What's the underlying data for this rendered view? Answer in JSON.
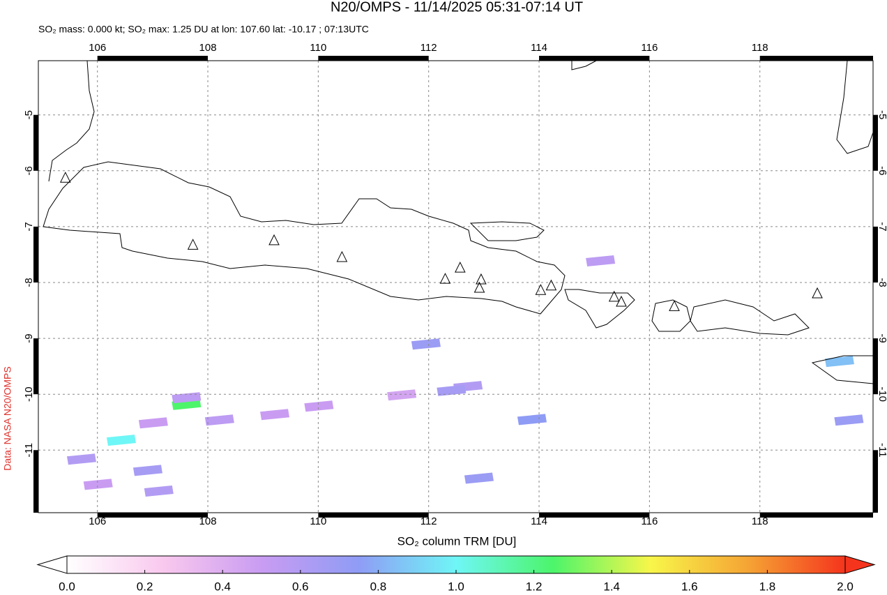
{
  "chart_data": {
    "type": "map",
    "title": "N20/OMPS - 11/14/2025 05:31-07:14 UT",
    "subtitle": "SO₂ mass: 0.000 kt; SO₂ max: 1.25 DU at lon: 107.60 lat: -10.17 ; 07:13UTC",
    "credit": "Data: NASA N20/OMPS",
    "xlim": [
      104.93,
      120.05
    ],
    "ylim": [
      -12.12,
      -4.03
    ],
    "xticks": [
      106,
      108,
      110,
      112,
      114,
      116,
      118
    ],
    "yticks": [
      -5,
      -6,
      -7,
      -8,
      -9,
      -10,
      -11
    ],
    "grid": true,
    "volcanoes": {
      "x": [
        105.42,
        107.73,
        109.2,
        110.43,
        112.3,
        112.57,
        112.95,
        112.92,
        114.03,
        114.22,
        115.36,
        115.49,
        116.45,
        119.04
      ],
      "y": [
        -6.13,
        -7.33,
        -7.25,
        -7.55,
        -7.94,
        -7.74,
        -7.95,
        -8.1,
        -8.14,
        -8.06,
        -8.26,
        -8.35,
        -8.43,
        -8.2
      ]
    },
    "pixels": {
      "x": [
        107.6,
        106.42,
        119.43,
        113.86,
        111.94,
        112.9,
        106.9,
        107.1,
        107.6,
        112.7,
        112.4,
        109.2,
        110.0,
        111.5,
        108.2,
        106.0,
        105.7,
        107.0,
        115.1,
        119.6
      ],
      "y": [
        -10.17,
        -10.81,
        -9.4,
        -10.44,
        -9.09,
        -11.49,
        -11.35,
        -11.72,
        -10.05,
        -9.85,
        -9.92,
        -10.35,
        -10.2,
        -10.0,
        -10.45,
        -11.6,
        -11.15,
        -10.5,
        -7.6,
        -10.45
      ],
      "values": [
        1.25,
        1.0,
        0.85,
        0.75,
        0.7,
        0.7,
        0.65,
        0.6,
        0.55,
        0.6,
        0.65,
        0.5,
        0.5,
        0.45,
        0.55,
        0.5,
        0.6,
        0.5,
        0.55,
        0.7
      ]
    },
    "colorbar": {
      "label": "SO₂ column TRM [DU]",
      "lim": [
        0,
        2
      ],
      "colors": [
        "#ffffff",
        "#f9c8ee",
        "#c99cf2",
        "#8f9cf5",
        "#6ff6f6",
        "#4cf56a",
        "#f8f64a",
        "#f5a434",
        "#f5341d"
      ],
      "ticks": [
        {
          "value": 0,
          "label": "0.0"
        },
        {
          "value": 0.2,
          "label": "0.2"
        },
        {
          "value": 0.4,
          "label": "0.4"
        },
        {
          "value": 0.6,
          "label": "0.6"
        },
        {
          "value": 0.8,
          "label": "0.8"
        },
        {
          "value": 1,
          "label": "1.0"
        },
        {
          "value": 1.2,
          "label": "1.2"
        },
        {
          "value": 1.4,
          "label": "1.4"
        },
        {
          "value": 1.6,
          "label": "1.6"
        },
        {
          "value": 1.8,
          "label": "1.8"
        },
        {
          "value": 2,
          "label": "2.0"
        }
      ]
    }
  }
}
